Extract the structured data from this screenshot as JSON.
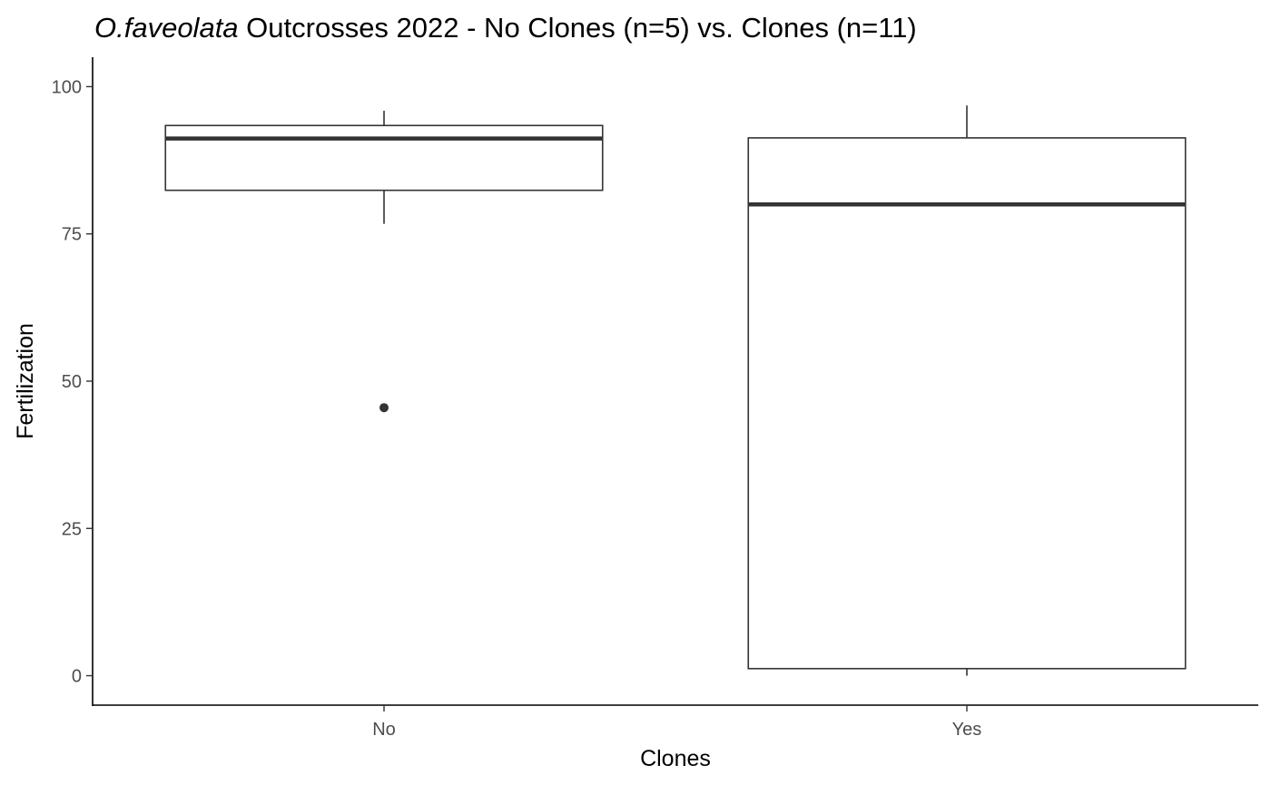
{
  "chart_data": {
    "type": "boxplot",
    "title_italic": "O.faveolata",
    "title_rest": " Outcrosses 2022 - No Clones (n=5) vs. Clones (n=11)",
    "xlabel": "Clones",
    "ylabel": "Fertilization",
    "ylim": [
      -5,
      105
    ],
    "yticks": [
      0,
      25,
      50,
      75,
      100
    ],
    "ytick_labels": [
      "0",
      "25",
      "50",
      "75",
      "100"
    ],
    "categories": [
      "No",
      "Yes"
    ],
    "boxes": [
      {
        "category": "No",
        "whisker_low": 76.7,
        "q1": 82.4,
        "median": 91.2,
        "q3": 93.4,
        "whisker_high": 95.9,
        "outliers": [
          45.5
        ]
      },
      {
        "category": "Yes",
        "whisker_low": 0.0,
        "q1": 1.2,
        "median": 80.0,
        "q3": 91.3,
        "whisker_high": 96.8,
        "outliers": []
      }
    ],
    "grid": false,
    "legend": "none",
    "colors": {
      "box_line": "#333333",
      "box_fill": "#ffffff",
      "axis": "#000000",
      "tick_text": "#4d4d4d"
    }
  }
}
